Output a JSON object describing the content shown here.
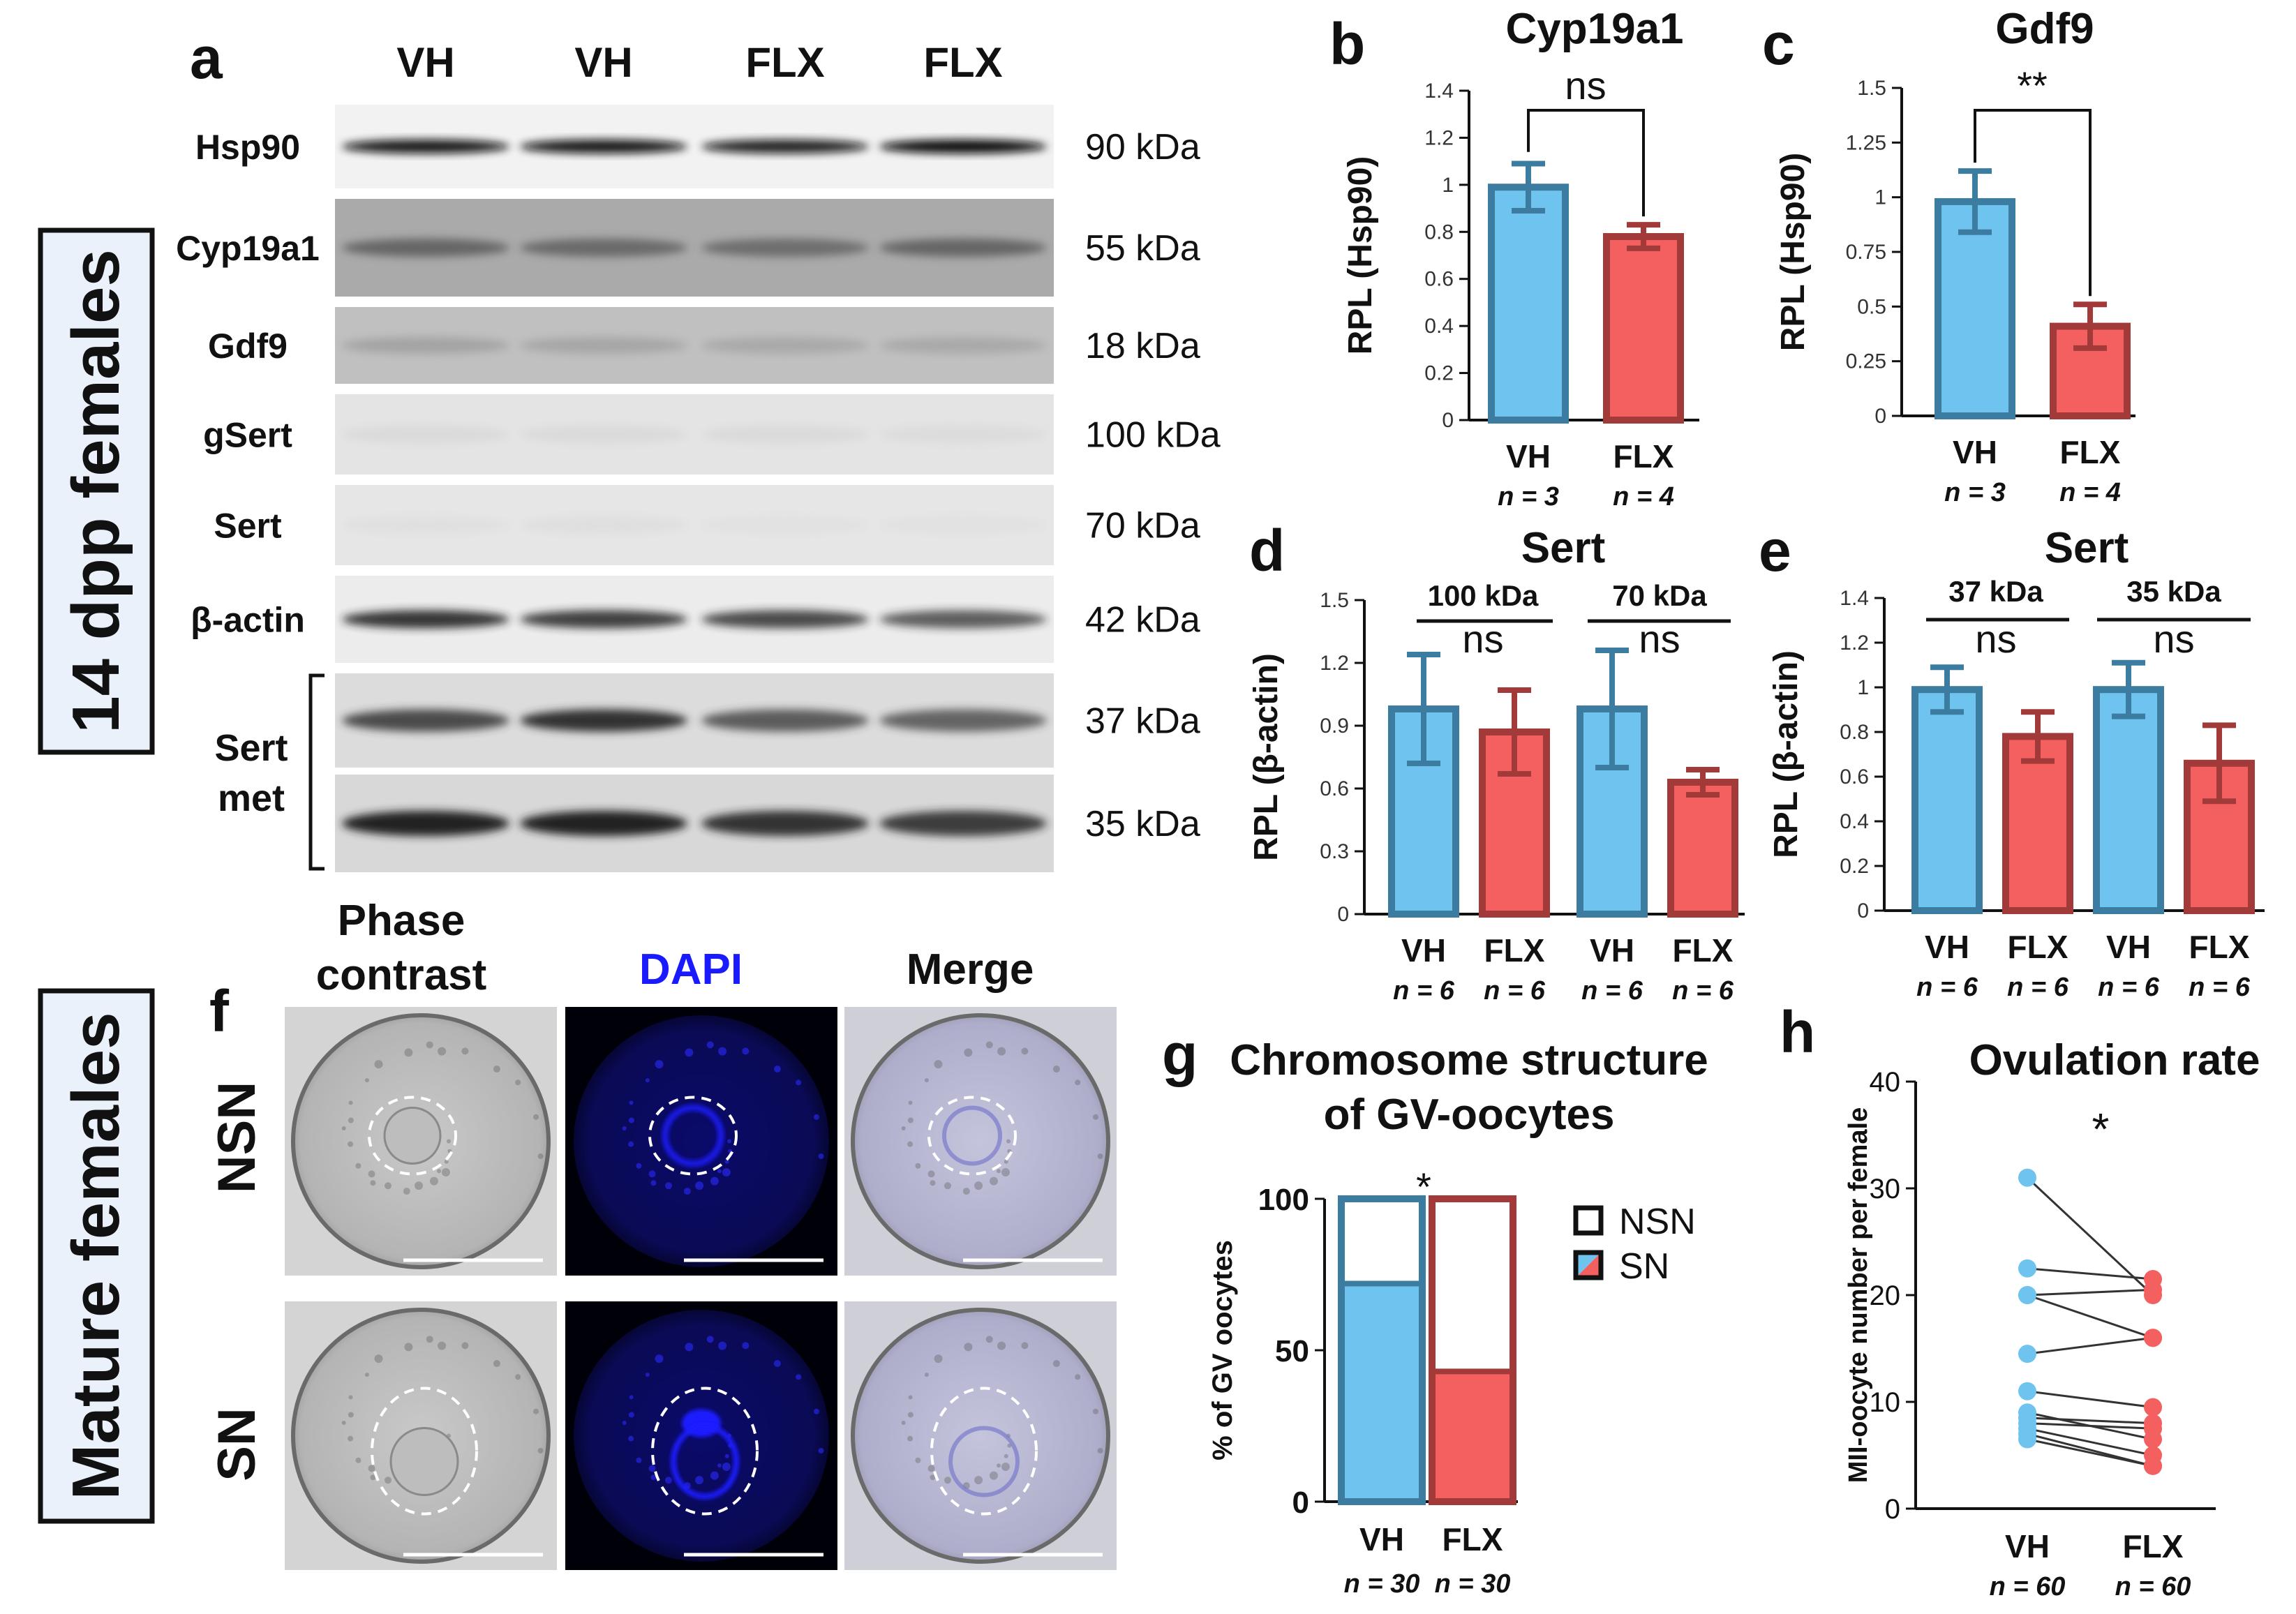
{
  "colors": {
    "vh_fill": "#6ec3ef",
    "vh_edge": "#3b7ca0",
    "flx_fill": "#f45f5f",
    "flx_edge": "#a33a3a",
    "dapi": "#1a1aff"
  },
  "side_labels": {
    "top": "14 dpp females",
    "bottom": "Mature females"
  },
  "panel_a": {
    "letter": "a",
    "lanes": [
      "VH",
      "VH",
      "FLX",
      "FLX"
    ],
    "blots": [
      {
        "label": "Hsp90",
        "kda": "90 kDa"
      },
      {
        "label": "Cyp19a1",
        "kda": "55 kDa"
      },
      {
        "label": "Gdf9",
        "kda": "18 kDa"
      },
      {
        "label": "gSert",
        "kda": "100 kDa"
      },
      {
        "label": "Sert",
        "kda": "70 kDa"
      },
      {
        "label": "β-actin",
        "kda": "42 kDa"
      },
      {
        "label": "",
        "kda": "37 kDa"
      },
      {
        "label": "",
        "kda": "35 kDa"
      }
    ],
    "bracket_label": [
      "Sert",
      "met"
    ]
  },
  "panel_f": {
    "letter": "f",
    "columns": [
      "Phase contrast",
      "DAPI",
      "Merge"
    ],
    "rows": [
      "NSN",
      "SN"
    ]
  },
  "chart_data": [
    {
      "panel": "b",
      "type": "bar",
      "title": "Cyp19a1",
      "ylabel": "RPL (Hsp90)",
      "ylim": [
        0,
        1.4
      ],
      "yticks": [
        "0",
        "0.2",
        "0.4",
        "0.6",
        "0.8",
        "1",
        "1.2",
        "1.4"
      ],
      "categories": [
        "VH",
        "FLX"
      ],
      "n_labels": [
        "n = 3",
        "n = 4"
      ],
      "values": [
        0.99,
        0.78
      ],
      "errors": [
        0.1,
        0.05
      ],
      "significance": "ns"
    },
    {
      "panel": "c",
      "type": "bar",
      "title": "Gdf9",
      "ylabel": "RPL (Hsp90)",
      "ylim": [
        0,
        1.5
      ],
      "yticks": [
        "0",
        "0.25",
        "0.5",
        "0.75",
        "1",
        "1.25",
        "1.5"
      ],
      "categories": [
        "VH",
        "FLX"
      ],
      "n_labels": [
        "n = 3",
        "n = 4"
      ],
      "values": [
        0.98,
        0.41
      ],
      "errors": [
        0.14,
        0.1
      ],
      "significance": "**"
    },
    {
      "panel": "d",
      "type": "bar",
      "title": "Sert",
      "ylabel": "RPL (β-actin)",
      "ylim": [
        0,
        1.5
      ],
      "yticks": [
        "0",
        "0.3",
        "0.6",
        "0.9",
        "1.2",
        "1.5"
      ],
      "groups": [
        "100 kDa",
        "70 kDa"
      ],
      "categories": [
        "VH",
        "FLX",
        "VH",
        "FLX"
      ],
      "n_labels": [
        "n = 6",
        "n = 6",
        "n = 6",
        "n = 6"
      ],
      "values": [
        0.98,
        0.87,
        0.98,
        0.63
      ],
      "errors": [
        0.26,
        0.2,
        0.28,
        0.06
      ],
      "significance": [
        "ns",
        "ns"
      ]
    },
    {
      "panel": "e",
      "type": "bar",
      "title": "Sert",
      "ylabel": "RPL (β-actin)",
      "ylim": [
        0,
        1.4
      ],
      "yticks": [
        "0",
        "0.2",
        "0.4",
        "0.6",
        "0.8",
        "1",
        "1.2",
        "1.4"
      ],
      "groups": [
        "37 kDa",
        "35 kDa"
      ],
      "categories": [
        "VH",
        "FLX",
        "VH",
        "FLX"
      ],
      "n_labels": [
        "n = 6",
        "n = 6",
        "n = 6",
        "n = 6"
      ],
      "values": [
        0.99,
        0.78,
        0.99,
        0.66
      ],
      "errors": [
        0.1,
        0.11,
        0.12,
        0.17
      ],
      "significance": [
        "ns",
        "ns"
      ]
    },
    {
      "panel": "g",
      "type": "bar",
      "stacked": true,
      "title": [
        "Chromosome structure",
        "of GV-oocytes"
      ],
      "ylabel": "% of GV oocytes",
      "ylim": [
        0,
        100
      ],
      "yticks": [
        "0",
        "50",
        "100"
      ],
      "categories": [
        "VH",
        "FLX"
      ],
      "n_labels": [
        "n = 30",
        "n = 30"
      ],
      "series": [
        {
          "name": "NSN",
          "values": [
            28,
            57
          ]
        },
        {
          "name": "SN",
          "values": [
            72,
            43
          ]
        }
      ],
      "significance": "*"
    },
    {
      "panel": "h",
      "type": "scatter",
      "paired": true,
      "title": "Ovulation rate",
      "ylabel": "MII-oocyte number per female",
      "ylim": [
        0,
        40
      ],
      "yticks": [
        "0",
        "10",
        "20",
        "30",
        "40"
      ],
      "categories": [
        "VH",
        "FLX"
      ],
      "n_labels": [
        "n = 60",
        "n = 60"
      ],
      "pairs": [
        [
          31,
          20
        ],
        [
          22.5,
          21.5
        ],
        [
          20,
          20.5
        ],
        [
          20,
          16
        ],
        [
          14.5,
          16
        ],
        [
          11,
          9.5
        ],
        [
          9,
          6.5
        ],
        [
          8.5,
          8
        ],
        [
          8,
          7.5
        ],
        [
          7.5,
          5
        ],
        [
          7,
          4
        ],
        [
          6.5,
          4
        ]
      ],
      "significance": "*"
    }
  ]
}
